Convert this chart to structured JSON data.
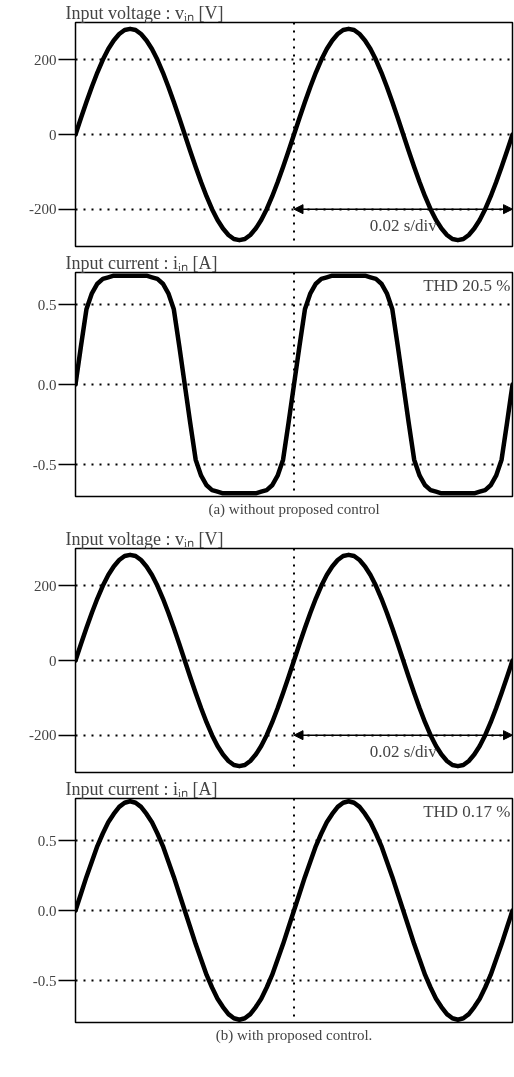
{
  "chart_data": [
    {
      "type": "line",
      "title": "Input voltage : vᵢₙ [V]",
      "categories": [
        null,
        null,
        null,
        null,
        null,
        null,
        null,
        null,
        null,
        null,
        null,
        null,
        null,
        null,
        null,
        null,
        null,
        null,
        null,
        null,
        null,
        null,
        null,
        null,
        null,
        null,
        null,
        null,
        null,
        null,
        null,
        null,
        null,
        null,
        null,
        null,
        null,
        null,
        null,
        null,
        null,
        null,
        null,
        null,
        null,
        null,
        null,
        null,
        null,
        null,
        null,
        null,
        null,
        null,
        null,
        null,
        null,
        null,
        null,
        null,
        null,
        null,
        null,
        null,
        null,
        null,
        null,
        null,
        null,
        null,
        null,
        null,
        null,
        null,
        null,
        null,
        null,
        null,
        null,
        null,
        null
      ],
      "series": [
        {
          "color": "#000000",
          "values": [
            0,
            44,
            87,
            128,
            166,
            200,
            229,
            252,
            269,
            280,
            283,
            280,
            269,
            252,
            229,
            200,
            166,
            128,
            87,
            44,
            0,
            -44,
            -87,
            -128,
            -166,
            -200,
            -229,
            -252,
            -269,
            -280,
            -283,
            -280,
            -269,
            -252,
            -229,
            -200,
            -166,
            -128,
            -87,
            -44,
            0,
            44,
            87,
            128,
            166,
            200,
            229,
            252,
            269,
            280,
            283,
            280,
            269,
            252,
            229,
            200,
            166,
            128,
            87,
            44,
            0,
            -44,
            -87,
            -128,
            -166,
            -200,
            -229,
            -252,
            -269,
            -280,
            -283,
            -280,
            -269,
            -252,
            -229,
            -200,
            -166,
            -128,
            -87,
            -44,
            0
          ]
        }
      ],
      "ylim": [
        -300,
        300
      ],
      "yticks": [
        -200,
        0,
        200
      ],
      "grid": "y",
      "tick_labels": "y",
      "line_style": "solid",
      "annotations": [
        "0.02 s/div"
      ]
    },
    {
      "type": "line",
      "title": "Input current : iᵢₙ [A]",
      "categories": [
        null,
        null,
        null,
        null,
        null,
        null,
        null,
        null,
        null,
        null,
        null,
        null,
        null,
        null,
        null,
        null,
        null,
        null,
        null,
        null,
        null,
        null,
        null,
        null,
        null,
        null,
        null,
        null,
        null,
        null,
        null,
        null,
        null,
        null,
        null,
        null,
        null,
        null,
        null,
        null,
        null,
        null,
        null,
        null,
        null,
        null,
        null,
        null,
        null,
        null,
        null,
        null,
        null,
        null,
        null,
        null,
        null,
        null,
        null,
        null,
        null,
        null,
        null,
        null,
        null,
        null,
        null,
        null,
        null,
        null,
        null,
        null,
        null,
        null,
        null,
        null,
        null,
        null,
        null,
        null,
        null
      ],
      "series": [
        {
          "color": "#000000",
          "values": [
            0,
            0.24,
            0.47,
            0.57,
            0.63,
            0.66,
            0.67,
            0.68,
            0.68,
            0.68,
            0.68,
            0.68,
            0.68,
            0.68,
            0.67,
            0.66,
            0.63,
            0.57,
            0.47,
            0.24,
            0,
            -0.24,
            -0.47,
            -0.57,
            -0.63,
            -0.66,
            -0.67,
            -0.68,
            -0.68,
            -0.68,
            -0.68,
            -0.68,
            -0.68,
            -0.68,
            -0.67,
            -0.66,
            -0.63,
            -0.57,
            -0.47,
            -0.24,
            0,
            0.24,
            0.47,
            0.57,
            0.63,
            0.66,
            0.67,
            0.68,
            0.68,
            0.68,
            0.68,
            0.68,
            0.68,
            0.68,
            0.67,
            0.66,
            0.63,
            0.57,
            0.47,
            0.24,
            0,
            -0.24,
            -0.47,
            -0.57,
            -0.63,
            -0.66,
            -0.67,
            -0.68,
            -0.68,
            -0.68,
            -0.68,
            -0.68,
            -0.68,
            -0.68,
            -0.67,
            -0.66,
            -0.63,
            -0.57,
            -0.47,
            -0.24,
            0
          ]
        }
      ],
      "ylim": [
        -0.7,
        0.7
      ],
      "yticks": [
        -0.5,
        {
          "value": 0,
          "label": "0.0"
        },
        0.5
      ],
      "grid": "y",
      "tick_labels": "y",
      "line_style": "solid",
      "annotations": [
        "THD 20.5 %",
        "(a) without proposed control"
      ]
    },
    {
      "type": "line",
      "title": "Input voltage : vᵢₙ [V]",
      "categories": [
        null,
        null,
        null,
        null,
        null,
        null,
        null,
        null,
        null,
        null,
        null,
        null,
        null,
        null,
        null,
        null,
        null,
        null,
        null,
        null,
        null,
        null,
        null,
        null,
        null,
        null,
        null,
        null,
        null,
        null,
        null,
        null,
        null,
        null,
        null,
        null,
        null,
        null,
        null,
        null,
        null,
        null,
        null,
        null,
        null,
        null,
        null,
        null,
        null,
        null,
        null,
        null,
        null,
        null,
        null,
        null,
        null,
        null,
        null,
        null,
        null,
        null,
        null,
        null,
        null,
        null,
        null,
        null,
        null,
        null,
        null,
        null,
        null,
        null,
        null,
        null,
        null,
        null,
        null,
        null,
        null
      ],
      "series": [
        {
          "color": "#000000",
          "values": [
            0,
            44,
            87,
            128,
            166,
            200,
            229,
            252,
            269,
            280,
            283,
            280,
            269,
            252,
            229,
            200,
            166,
            128,
            87,
            44,
            0,
            -44,
            -87,
            -128,
            -166,
            -200,
            -229,
            -252,
            -269,
            -280,
            -283,
            -280,
            -269,
            -252,
            -229,
            -200,
            -166,
            -128,
            -87,
            -44,
            0,
            44,
            87,
            128,
            166,
            200,
            229,
            252,
            269,
            280,
            283,
            280,
            269,
            252,
            229,
            200,
            166,
            128,
            87,
            44,
            0,
            -44,
            -87,
            -128,
            -166,
            -200,
            -229,
            -252,
            -269,
            -280,
            -283,
            -280,
            -269,
            -252,
            -229,
            -200,
            -166,
            -128,
            -87,
            -44,
            0
          ]
        }
      ],
      "ylim": [
        -300,
        300
      ],
      "yticks": [
        -200,
        0,
        200
      ],
      "grid": "y",
      "tick_labels": "y",
      "line_style": "solid",
      "annotations": [
        "0.02 s/div"
      ]
    },
    {
      "type": "line",
      "title": "Input current : iᵢₙ [A]",
      "categories": [
        null,
        null,
        null,
        null,
        null,
        null,
        null,
        null,
        null,
        null,
        null,
        null,
        null,
        null,
        null,
        null,
        null,
        null,
        null,
        null,
        null,
        null,
        null,
        null,
        null,
        null,
        null,
        null,
        null,
        null,
        null,
        null,
        null,
        null,
        null,
        null,
        null,
        null,
        null,
        null,
        null,
        null,
        null,
        null,
        null,
        null,
        null,
        null,
        null,
        null,
        null,
        null,
        null,
        null,
        null,
        null,
        null,
        null,
        null,
        null,
        null,
        null,
        null,
        null,
        null,
        null,
        null,
        null,
        null,
        null,
        null,
        null,
        null,
        null,
        null,
        null,
        null,
        null,
        null,
        null,
        null
      ],
      "series": [
        {
          "color": "#000000",
          "values": [
            0,
            0.12,
            0.24,
            0.35,
            0.46,
            0.55,
            0.63,
            0.69,
            0.74,
            0.77,
            0.78,
            0.77,
            0.74,
            0.69,
            0.63,
            0.55,
            0.46,
            0.35,
            0.24,
            0.12,
            0,
            -0.12,
            -0.24,
            -0.35,
            -0.46,
            -0.55,
            -0.63,
            -0.69,
            -0.74,
            -0.77,
            -0.78,
            -0.77,
            -0.74,
            -0.69,
            -0.63,
            -0.55,
            -0.46,
            -0.35,
            -0.24,
            -0.12,
            0,
            0.12,
            0.24,
            0.35,
            0.46,
            0.55,
            0.63,
            0.69,
            0.74,
            0.77,
            0.78,
            0.77,
            0.74,
            0.69,
            0.63,
            0.55,
            0.46,
            0.35,
            0.24,
            0.12,
            0,
            -0.12,
            -0.24,
            -0.35,
            -0.46,
            -0.55,
            -0.63,
            -0.69,
            -0.74,
            -0.77,
            -0.78,
            -0.77,
            -0.74,
            -0.69,
            -0.63,
            -0.55,
            -0.46,
            -0.35,
            -0.24,
            -0.12,
            0
          ]
        }
      ],
      "ylim": [
        -0.8,
        0.8
      ],
      "yticks": [
        -0.5,
        {
          "value": 0,
          "label": "0.0"
        },
        0.5
      ],
      "grid": "y",
      "tick_labels": "y",
      "line_style": "solid",
      "annotations": [
        "THD 0.17 %",
        "(b) with proposed control."
      ]
    }
  ]
}
